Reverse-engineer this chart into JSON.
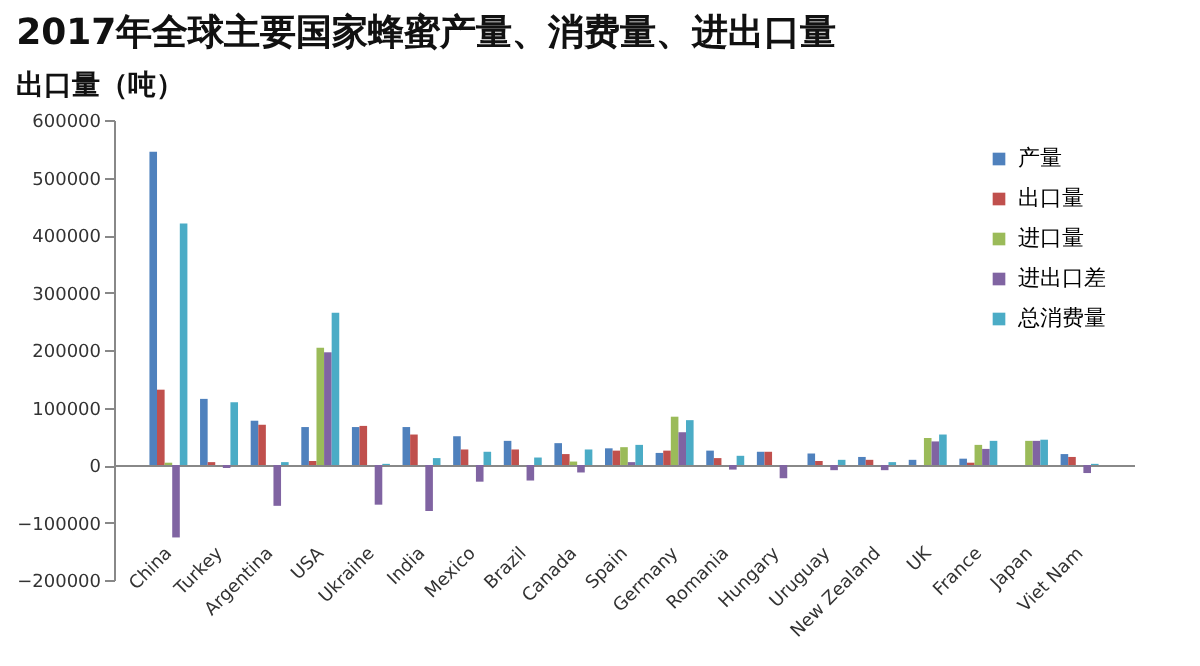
{
  "chart_data": {
    "type": "bar",
    "title": "2017年全球主要国家蜂蜜产量、消费量、进出口量",
    "subtitle": "出口量（吨）",
    "categories": [
      "China",
      "Turkey",
      "Argentina",
      "USA",
      "Ukraine",
      "India",
      "Mexico",
      "Brazil",
      "Canada",
      "Spain",
      "Germany",
      "Romania",
      "Hungary",
      "Uruguay",
      "New Zealand",
      "UK",
      "France",
      "Japan",
      "Viet Nam"
    ],
    "series": [
      {
        "name": "产量",
        "color": "#4f81bd",
        "values": [
          545000,
          115000,
          77000,
          66000,
          66000,
          66000,
          50000,
          42000,
          38000,
          29000,
          21000,
          25000,
          23000,
          20000,
          14000,
          9000,
          11000,
          0,
          19000
        ]
      },
      {
        "name": "出口量",
        "color": "#c0504d",
        "values": [
          131000,
          5000,
          70000,
          7000,
          68000,
          53000,
          27000,
          27000,
          19000,
          25000,
          25000,
          12000,
          23000,
          7000,
          9000,
          0,
          4000,
          0,
          14000
        ]
      },
      {
        "name": "进口量",
        "color": "#9bbb59",
        "values": [
          4000,
          0,
          0,
          204000,
          0,
          0,
          0,
          0,
          6000,
          31000,
          84000,
          0,
          0,
          0,
          0,
          47000,
          35000,
          42000,
          0
        ]
      },
      {
        "name": "进出口差",
        "color": "#8064a2",
        "values": [
          -126000,
          -5000,
          -71000,
          196000,
          -69000,
          -80000,
          -29000,
          -27000,
          -13000,
          5000,
          57000,
          -8000,
          -23000,
          -9000,
          -9000,
          41000,
          28000,
          42000,
          -14000
        ]
      },
      {
        "name": "总消费量",
        "color": "#4bacc6",
        "values": [
          420000,
          109000,
          5000,
          265000,
          2000,
          12000,
          23000,
          13000,
          27000,
          35000,
          78000,
          16000,
          0,
          9000,
          5000,
          53000,
          42000,
          44000,
          2000
        ]
      }
    ],
    "ylim": [
      -200000,
      600000
    ],
    "yticks": [
      -200000,
      -100000,
      0,
      100000,
      200000,
      300000,
      400000,
      500000,
      600000
    ],
    "legend": "top right"
  }
}
